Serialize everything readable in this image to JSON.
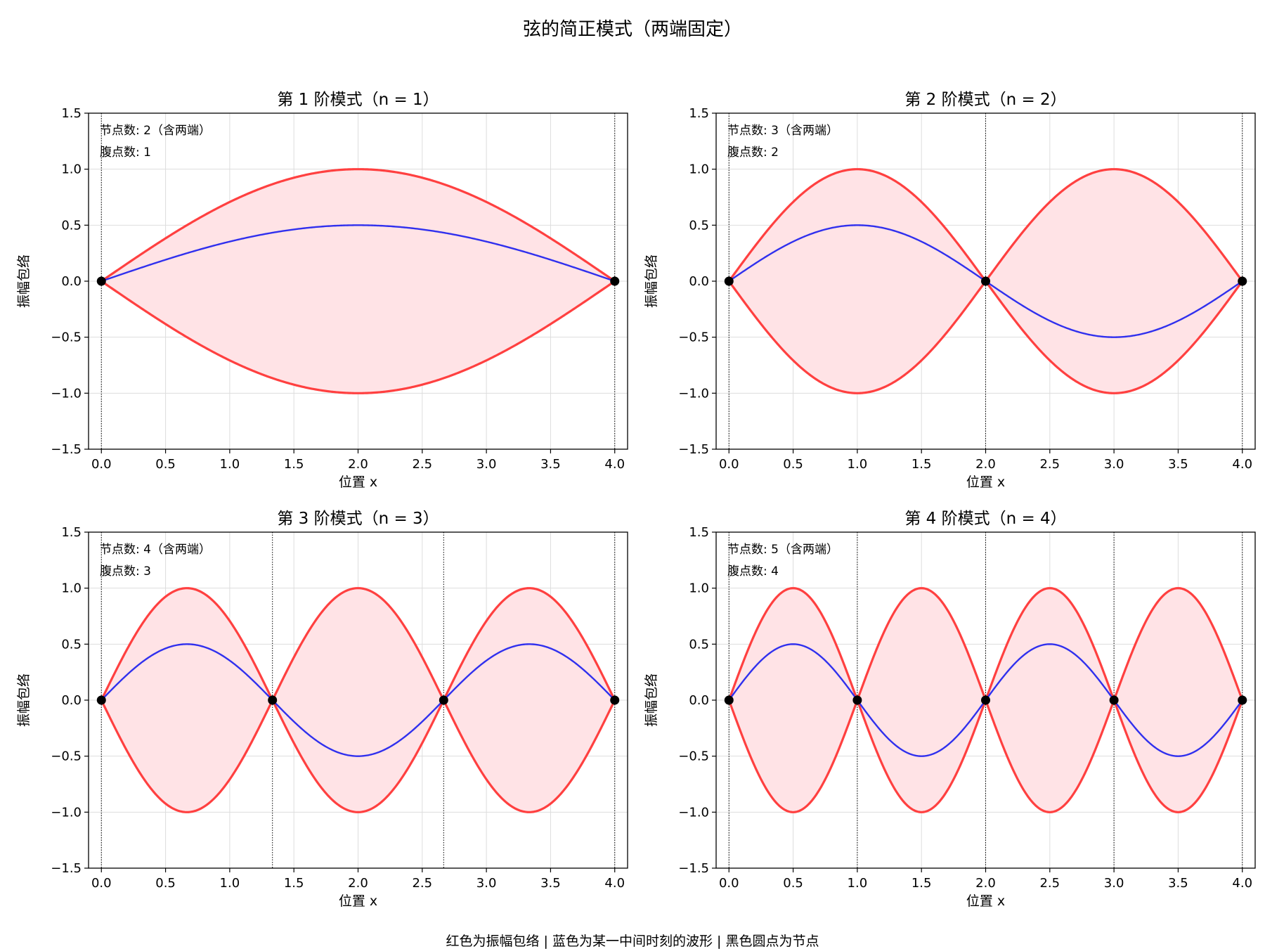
{
  "figure": {
    "suptitle": "弦的简正模式（两端固定）",
    "footer": "红色为振幅包络 | 蓝色为某一中间时刻的波形 | 黑色圆点为节点"
  },
  "colors": {
    "envelope": "#ff4040",
    "envelope_fill": "#ffe3e6",
    "waveform": "#3030ee",
    "node": "#000000",
    "grid": "#dddddd"
  },
  "chart_data": [
    {
      "type": "line",
      "title": "第 1 阶模式（n = 1）",
      "xlabel": "位置 x",
      "ylabel": "振幅包络",
      "xlim": [
        -0.1,
        4.1
      ],
      "ylim": [
        -1.5,
        1.5
      ],
      "xticks": [
        0.0,
        0.5,
        1.0,
        1.5,
        2.0,
        2.5,
        3.0,
        3.5,
        4.0
      ],
      "yticks": [
        -1.5,
        -1.0,
        -0.5,
        0.0,
        0.5,
        1.0,
        1.5
      ],
      "xticklabels": [
        "0.0",
        "0.5",
        "1.0",
        "1.5",
        "2.0",
        "2.5",
        "3.0",
        "3.5",
        "4.0"
      ],
      "yticklabels": [
        "−1.5",
        "−1.0",
        "−0.5",
        "0.0",
        "0.5",
        "1.0",
        "1.5"
      ],
      "grid": true,
      "string_length": 4.0,
      "mode_number": 1,
      "envelope_amplitude": 1.0,
      "waveform_amplitude": 0.5,
      "nodes": [
        0.0,
        4.0
      ],
      "annotation_nodes": "节点数: 2（含两端）",
      "annotation_antinodes": "腹点数: 1"
    },
    {
      "type": "line",
      "title": "第 2 阶模式（n = 2）",
      "xlabel": "位置 x",
      "ylabel": "振幅包络",
      "xlim": [
        -0.1,
        4.1
      ],
      "ylim": [
        -1.5,
        1.5
      ],
      "xticks": [
        0.0,
        0.5,
        1.0,
        1.5,
        2.0,
        2.5,
        3.0,
        3.5,
        4.0
      ],
      "yticks": [
        -1.5,
        -1.0,
        -0.5,
        0.0,
        0.5,
        1.0,
        1.5
      ],
      "xticklabels": [
        "0.0",
        "0.5",
        "1.0",
        "1.5",
        "2.0",
        "2.5",
        "3.0",
        "3.5",
        "4.0"
      ],
      "yticklabels": [
        "−1.5",
        "−1.0",
        "−0.5",
        "0.0",
        "0.5",
        "1.0",
        "1.5"
      ],
      "grid": true,
      "string_length": 4.0,
      "mode_number": 2,
      "envelope_amplitude": 1.0,
      "waveform_amplitude": 0.5,
      "nodes": [
        0.0,
        2.0,
        4.0
      ],
      "annotation_nodes": "节点数: 3（含两端）",
      "annotation_antinodes": "腹点数: 2"
    },
    {
      "type": "line",
      "title": "第 3 阶模式（n = 3）",
      "xlabel": "位置 x",
      "ylabel": "振幅包络",
      "xlim": [
        -0.1,
        4.1
      ],
      "ylim": [
        -1.5,
        1.5
      ],
      "xticks": [
        0.0,
        0.5,
        1.0,
        1.5,
        2.0,
        2.5,
        3.0,
        3.5,
        4.0
      ],
      "yticks": [
        -1.5,
        -1.0,
        -0.5,
        0.0,
        0.5,
        1.0,
        1.5
      ],
      "xticklabels": [
        "0.0",
        "0.5",
        "1.0",
        "1.5",
        "2.0",
        "2.5",
        "3.0",
        "3.5",
        "4.0"
      ],
      "yticklabels": [
        "−1.5",
        "−1.0",
        "−0.5",
        "0.0",
        "0.5",
        "1.0",
        "1.5"
      ],
      "grid": true,
      "string_length": 4.0,
      "mode_number": 3,
      "envelope_amplitude": 1.0,
      "waveform_amplitude": 0.5,
      "nodes": [
        0.0,
        1.333,
        2.667,
        4.0
      ],
      "annotation_nodes": "节点数: 4（含两端）",
      "annotation_antinodes": "腹点数: 3"
    },
    {
      "type": "line",
      "title": "第 4 阶模式（n = 4）",
      "xlabel": "位置 x",
      "ylabel": "振幅包络",
      "xlim": [
        -0.1,
        4.1
      ],
      "ylim": [
        -1.5,
        1.5
      ],
      "xticks": [
        0.0,
        0.5,
        1.0,
        1.5,
        2.0,
        2.5,
        3.0,
        3.5,
        4.0
      ],
      "yticks": [
        -1.5,
        -1.0,
        -0.5,
        0.0,
        0.5,
        1.0,
        1.5
      ],
      "xticklabels": [
        "0.0",
        "0.5",
        "1.0",
        "1.5",
        "2.0",
        "2.5",
        "3.0",
        "3.5",
        "4.0"
      ],
      "yticklabels": [
        "−1.5",
        "−1.0",
        "−0.5",
        "0.0",
        "0.5",
        "1.0",
        "1.5"
      ],
      "grid": true,
      "string_length": 4.0,
      "mode_number": 4,
      "envelope_amplitude": 1.0,
      "waveform_amplitude": 0.5,
      "nodes": [
        0.0,
        1.0,
        2.0,
        3.0,
        4.0
      ],
      "annotation_nodes": "节点数: 5（含两端）",
      "annotation_antinodes": "腹点数: 4"
    }
  ]
}
